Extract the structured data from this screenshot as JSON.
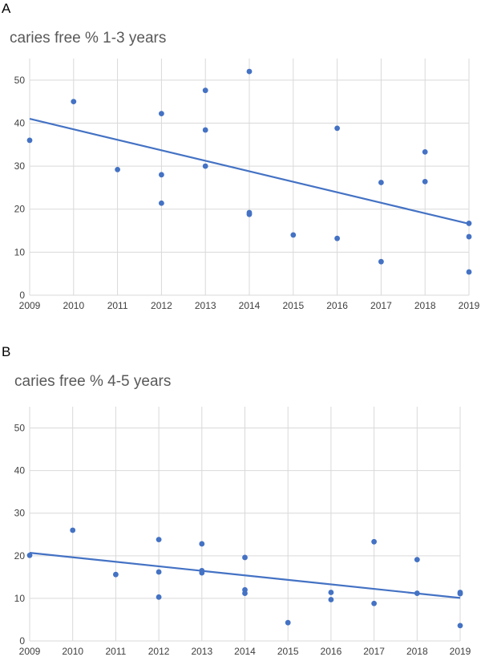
{
  "colors": {
    "series": "#4472C4",
    "grid": "#D9D9D9",
    "text": "#595959"
  },
  "chart_data": [
    {
      "panel": "A",
      "type": "scatter",
      "title": "caries free % 1-3 years",
      "xlabel": "",
      "ylabel": "",
      "xlim": [
        2009,
        2019
      ],
      "ylim": [
        0,
        55
      ],
      "x_ticks": [
        2009,
        2010,
        2011,
        2012,
        2013,
        2014,
        2015,
        2016,
        2017,
        2018,
        2019
      ],
      "y_ticks": [
        0,
        10,
        20,
        30,
        40,
        50
      ],
      "x_grid": true,
      "y_grid": true,
      "series": [
        {
          "name": "caries free % 1-3 years",
          "points": [
            [
              2009,
              36
            ],
            [
              2010,
              45
            ],
            [
              2011,
              29.2
            ],
            [
              2012,
              42.2
            ],
            [
              2012,
              28
            ],
            [
              2012,
              21.4
            ],
            [
              2013,
              47.6
            ],
            [
              2013,
              38.4
            ],
            [
              2013,
              30
            ],
            [
              2014,
              52
            ],
            [
              2014,
              19.2
            ],
            [
              2014,
              18.8
            ],
            [
              2015,
              14
            ],
            [
              2016,
              38.8
            ],
            [
              2016,
              13.2
            ],
            [
              2017,
              26.2
            ],
            [
              2017,
              7.8
            ],
            [
              2018,
              33.3
            ],
            [
              2018,
              26.4
            ],
            [
              2019,
              16.7
            ],
            [
              2019,
              13.6
            ],
            [
              2019,
              5.4
            ]
          ]
        }
      ],
      "trendline": {
        "type": "linear",
        "start": [
          2009,
          41
        ],
        "end": [
          2019,
          16.6
        ]
      }
    },
    {
      "panel": "B",
      "type": "scatter",
      "title": "caries free % 4-5 years",
      "xlabel": "",
      "ylabel": "",
      "xlim": [
        2009,
        2019
      ],
      "ylim": [
        0,
        55
      ],
      "x_ticks": [
        2009,
        2010,
        2011,
        2012,
        2013,
        2014,
        2015,
        2016,
        2017,
        2018,
        2019
      ],
      "y_ticks": [
        0,
        10,
        20,
        30,
        40,
        50
      ],
      "x_grid": true,
      "y_grid": true,
      "series": [
        {
          "name": "caries free % 4-5 years",
          "points": [
            [
              2009,
              20.1
            ],
            [
              2010,
              26
            ],
            [
              2011,
              15.6
            ],
            [
              2012,
              23.8
            ],
            [
              2012,
              16.2
            ],
            [
              2012,
              10.3
            ],
            [
              2013,
              22.8
            ],
            [
              2013,
              16.5
            ],
            [
              2013,
              16
            ],
            [
              2014,
              19.6
            ],
            [
              2014,
              12
            ],
            [
              2014,
              11.2
            ],
            [
              2015,
              4.3
            ],
            [
              2016,
              11.4
            ],
            [
              2016,
              9.7
            ],
            [
              2017,
              23.3
            ],
            [
              2017,
              8.8
            ],
            [
              2018,
              19.1
            ],
            [
              2018,
              11.2
            ],
            [
              2019,
              11.4
            ],
            [
              2019,
              11.1
            ],
            [
              2019,
              3.6
            ]
          ]
        }
      ],
      "trendline": {
        "type": "linear",
        "start": [
          2009,
          20.7
        ],
        "end": [
          2019,
          10.1
        ]
      }
    }
  ]
}
